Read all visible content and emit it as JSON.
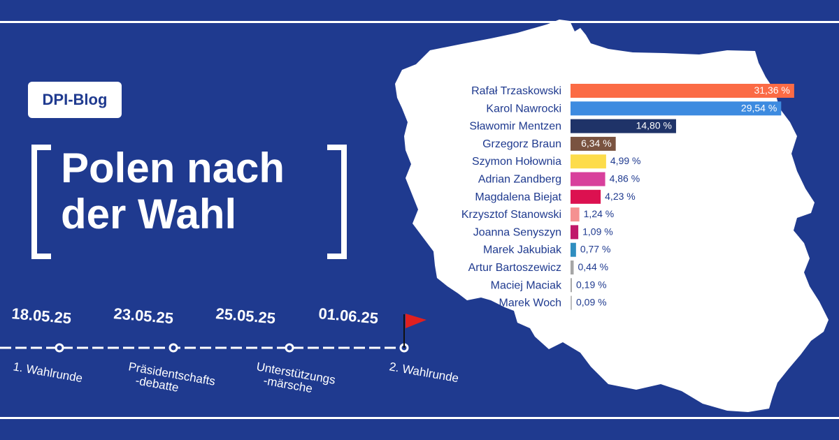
{
  "badge": "DPI-Blog",
  "title": {
    "line1": "Polen nach",
    "line2": "der Wahl"
  },
  "timeline": [
    {
      "date": "18.05.25",
      "label_lines": [
        "1. Wahlrunde"
      ]
    },
    {
      "date": "23.05.25",
      "label_lines": [
        "Präsidentschafts",
        "-debatte"
      ]
    },
    {
      "date": "25.05.25",
      "label_lines": [
        "Unterstützungs",
        "-märsche"
      ]
    },
    {
      "date": "01.06.25",
      "label_lines": [
        "2. Wahlrunde"
      ]
    }
  ],
  "colors": {
    "background": "#1f3a8f",
    "map": "#ffffff",
    "flag": "#e02020",
    "text_dark": "#1f3a8f"
  },
  "chart_data": {
    "type": "bar",
    "orientation": "horizontal",
    "categories": [
      "Rafał Trzaskowski",
      "Karol Nawrocki",
      "Sławomir Mentzen",
      "Grzegorz Braun",
      "Szymon Hołownia",
      "Adrian Zandberg",
      "Magdalena Biejat",
      "Krzysztof Stanowski",
      "Joanna Senyszyn",
      "Marek Jakubiak",
      "Artur Bartoszewicz",
      "Maciej Maciak",
      "Marek Woch"
    ],
    "values": [
      31.36,
      29.54,
      14.8,
      6.34,
      4.99,
      4.86,
      4.23,
      1.24,
      1.09,
      0.77,
      0.44,
      0.19,
      0.09
    ],
    "value_labels": [
      "31,36 %",
      "29,54 %",
      "14,80 %",
      "6,34 %",
      "4,99 %",
      "4,86 %",
      "4,23 %",
      "1,24 %",
      "1,09 %",
      "0,77 %",
      "0,44 %",
      "0,19 %",
      "0,09 %"
    ],
    "colors": [
      "#fb6b45",
      "#3d8be0",
      "#1f3368",
      "#7a5340",
      "#fddc4a",
      "#d8409c",
      "#dc1150",
      "#f59191",
      "#c0186a",
      "#2f8ebf",
      "#a6a6a6",
      "#a9a9a9",
      "#bdbdbd"
    ],
    "inside_label": [
      true,
      true,
      true,
      true,
      false,
      false,
      false,
      false,
      false,
      false,
      false,
      false,
      false
    ]
  }
}
